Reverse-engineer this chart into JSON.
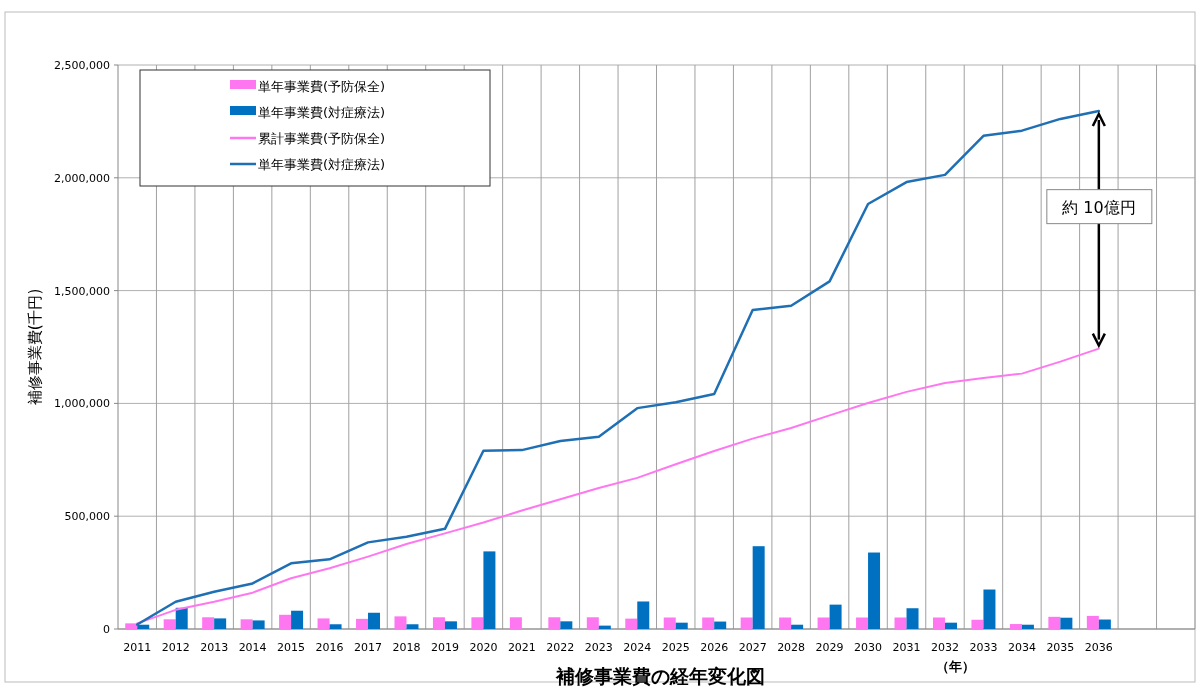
{
  "chart_data": {
    "type": "bar",
    "title": "補修事業費の経年変化図",
    "xlabel": "（年）",
    "ylabel": "補修事業費(千円)",
    "categories": [
      "2011",
      "2012",
      "2013",
      "2014",
      "2015",
      "2016",
      "2017",
      "2018",
      "2019",
      "2020",
      "2021",
      "2022",
      "2023",
      "2024",
      "2025",
      "2026",
      "2027",
      "2028",
      "2029",
      "2030",
      "2031",
      "2032",
      "2033",
      "2034",
      "2035",
      "2036",
      null,
      null
    ],
    "series": [
      {
        "name": "単年事業費(予防保全)",
        "color": "#ff77f0",
        "values": [
          25000,
          43000,
          52000,
          43000,
          63000,
          47000,
          45000,
          56000,
          52000,
          52000,
          52000,
          52000,
          52000,
          46000,
          51000,
          51000,
          51000,
          51000,
          51000,
          51000,
          51000,
          51000,
          41000,
          22000,
          54000,
          58000,
          null,
          null
        ]
      },
      {
        "name": "単年事業費(対症療法)",
        "color": "#0070c0",
        "values": [
          19000,
          94000,
          47000,
          38000,
          81000,
          21000,
          72000,
          21000,
          34000,
          344000,
          null,
          34000,
          15000,
          122000,
          28000,
          33000,
          367000,
          19000,
          108000,
          339000,
          92000,
          28000,
          175000,
          19000,
          50000,
          42000,
          null,
          null
        ]
      },
      {
        "name": "累計事業費(予防保全)",
        "type": "line",
        "color": "#ff77f0",
        "values": [
          25000,
          85000,
          121000,
          161000,
          225000,
          269000,
          321000,
          377000,
          424000,
          472000,
          525000,
          575000,
          625000,
          670000,
          730000,
          789000,
          844000,
          891000,
          947000,
          1002000,
          1051000,
          1090000,
          1113000,
          1132000,
          1185000,
          1243000,
          null,
          null
        ]
      },
      {
        "name": "単年事業費(対症療法)",
        "type": "line",
        "color": "#1f6fb4",
        "values": [
          20000,
          121000,
          165000,
          202000,
          291000,
          309000,
          384000,
          409000,
          444000,
          790000,
          793000,
          833000,
          852000,
          979000,
          1005000,
          1042000,
          1414000,
          1433000,
          1541000,
          1884000,
          1981000,
          2013000,
          2186000,
          2209000,
          2261000,
          2296000,
          null,
          null
        ]
      }
    ],
    "ylim": [
      0,
      2500000
    ],
    "yticks": [
      {
        "value": 0,
        "label": "0"
      },
      {
        "value": 500000,
        "label": "500,000"
      },
      {
        "value": 1000000,
        "label": "1,000,000"
      },
      {
        "value": 1500000,
        "label": "1,500,000"
      },
      {
        "value": 2000000,
        "label": "2,000,000"
      },
      {
        "value": 2500000,
        "label": "2,500,000"
      }
    ],
    "grid": true,
    "legend": "top left",
    "annotations": [
      "約 10億円"
    ]
  }
}
